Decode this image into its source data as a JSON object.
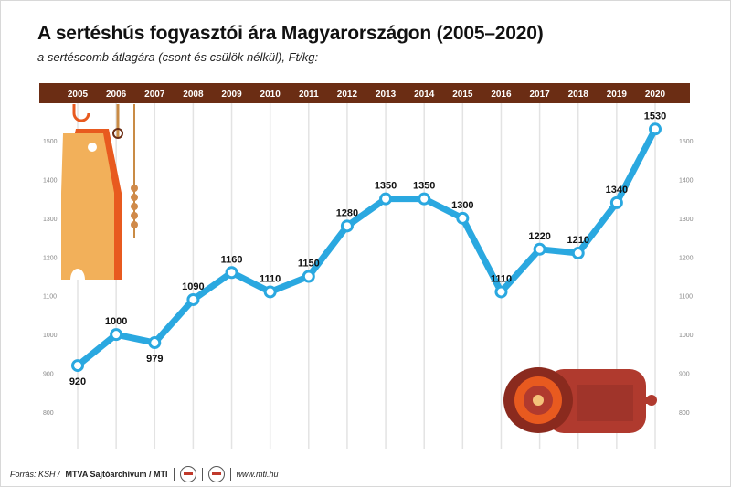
{
  "title": "A sertéshús fogyasztói ára Magyarországon (2005–2020)",
  "subtitle": "a sertéscomb átlagára (csont és csülök nélkül), Ft/kg:",
  "footer": {
    "source_label": "Forrás: KSH /",
    "agency": "MTVA Sajtóarchívum / MTI",
    "website": "www.mti.hu"
  },
  "colors": {
    "header_bar": "#6b2d14",
    "line": "#2aa8e0",
    "grid": "#e3e3e3",
    "tick_text": "#888888",
    "label_text": "#111111"
  },
  "chart_data": {
    "type": "line",
    "x": [
      "2005",
      "2006",
      "2007",
      "2008",
      "2009",
      "2010",
      "2011",
      "2012",
      "2013",
      "2014",
      "2015",
      "2016",
      "2017",
      "2018",
      "2019",
      "2020"
    ],
    "values": [
      920,
      1000,
      979,
      1090,
      1160,
      1110,
      1150,
      1280,
      1350,
      1350,
      1300,
      1110,
      1220,
      1210,
      1340,
      1530
    ],
    "data_labels": [
      "920",
      "1000",
      "979",
      "1090",
      "1160",
      "1110",
      "1150",
      "1280",
      "1350",
      "1350",
      "1300",
      "1110",
      "1220",
      "1210",
      "1340",
      "1530"
    ],
    "y_ticks": [
      800,
      900,
      1000,
      1100,
      1200,
      1300,
      1400,
      1500
    ],
    "ylim": [
      800,
      1530
    ],
    "grid": true,
    "title": "A sertéshús fogyasztói ára Magyarországon (2005–2020)",
    "ylabel": "Ft/kg"
  }
}
